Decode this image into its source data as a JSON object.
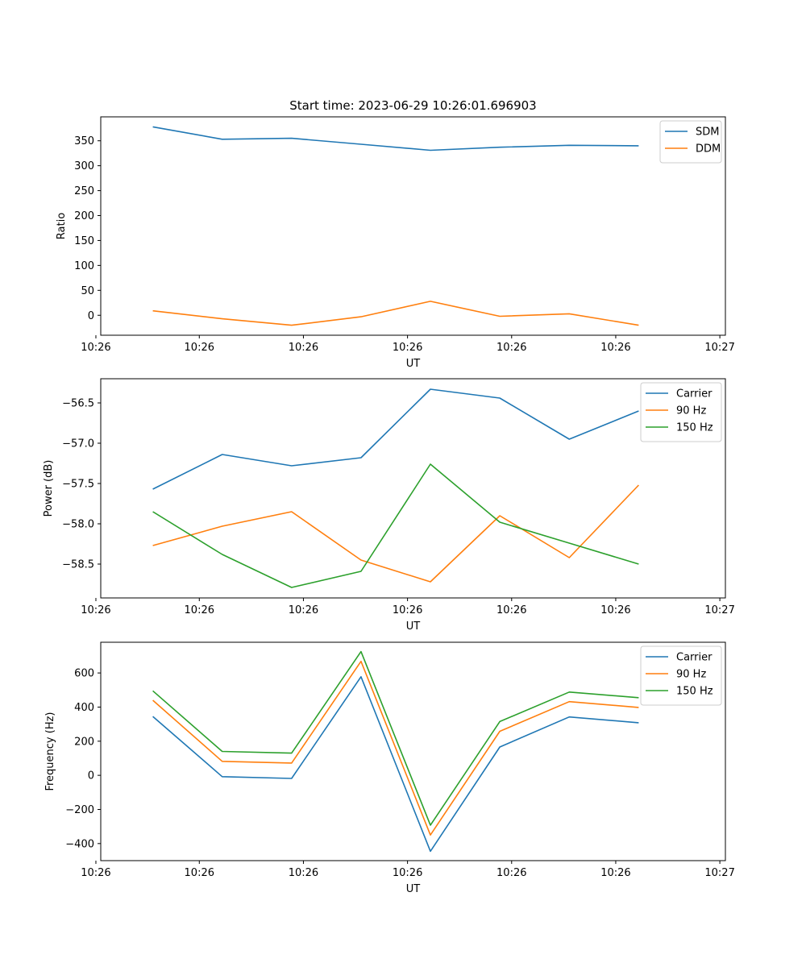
{
  "figure": {
    "title": "Start time: 2023-06-29 10:26:01.696903"
  },
  "chart_data": [
    {
      "type": "line",
      "title": "Start time: 2023-06-29 10:26:01.696903",
      "xlabel": "UT",
      "ylabel": "Ratio",
      "x": [
        1,
        2,
        3,
        4,
        5,
        6,
        7,
        8
      ],
      "x_range": [
        0.25,
        9.25
      ],
      "x_ticks": [
        0.18,
        1.67,
        3.17,
        4.67,
        6.17,
        7.67,
        9.17
      ],
      "x_tick_labels": [
        "10:26",
        "10:26",
        "10:26",
        "10:26",
        "10:26",
        "10:26",
        "10:27"
      ],
      "ylim": [
        -40,
        398
      ],
      "y_ticks": [
        0,
        50,
        100,
        150,
        200,
        250,
        300,
        350
      ],
      "y_tick_labels": [
        "0",
        "50",
        "100",
        "150",
        "200",
        "250",
        "300",
        "350"
      ],
      "grid": false,
      "legend_position": "top-right",
      "series": [
        {
          "name": "SDM",
          "color": "#1f77b4",
          "values": [
            378,
            353,
            355,
            343,
            331,
            337,
            341,
            340
          ]
        },
        {
          "name": "DDM",
          "color": "#ff7f0e",
          "values": [
            9,
            -7,
            -20,
            -3,
            28,
            -2,
            3,
            -20
          ]
        }
      ]
    },
    {
      "type": "line",
      "xlabel": "UT",
      "ylabel": "Power (dB)",
      "x": [
        1,
        2,
        3,
        4,
        5,
        6,
        7,
        8
      ],
      "x_range": [
        0.25,
        9.25
      ],
      "x_ticks": [
        0.18,
        1.67,
        3.17,
        4.67,
        6.17,
        7.67,
        9.17
      ],
      "x_tick_labels": [
        "10:26",
        "10:26",
        "10:26",
        "10:26",
        "10:26",
        "10:26",
        "10:27"
      ],
      "ylim": [
        -58.92,
        -56.2
      ],
      "y_ticks": [
        -58.5,
        -58.0,
        -57.5,
        -57.0,
        -56.5
      ],
      "y_tick_labels": [
        "−58.5",
        "−58.0",
        "−57.5",
        "−57.0",
        "−56.5"
      ],
      "grid": false,
      "legend_position": "top-right",
      "series": [
        {
          "name": "Carrier",
          "color": "#1f77b4",
          "values": [
            -57.57,
            -57.14,
            -57.28,
            -57.18,
            -56.33,
            -56.44,
            -56.95,
            -56.6
          ]
        },
        {
          "name": "90 Hz",
          "color": "#ff7f0e",
          "values": [
            -58.27,
            -58.03,
            -57.85,
            -58.45,
            -58.72,
            -57.9,
            -58.42,
            -57.52
          ]
        },
        {
          "name": "150 Hz",
          "color": "#2ca02c",
          "values": [
            -57.85,
            -58.38,
            -58.79,
            -58.59,
            -57.26,
            -57.98,
            -58.24,
            -58.5
          ]
        }
      ]
    },
    {
      "type": "line",
      "xlabel": "UT",
      "ylabel": "Frequency (Hz)",
      "x": [
        1,
        2,
        3,
        4,
        5,
        6,
        7,
        8
      ],
      "x_range": [
        0.25,
        9.25
      ],
      "x_ticks": [
        0.18,
        1.67,
        3.17,
        4.67,
        6.17,
        7.67,
        9.17
      ],
      "x_tick_labels": [
        "10:26",
        "10:26",
        "10:26",
        "10:26",
        "10:26",
        "10:26",
        "10:27"
      ],
      "ylim": [
        -500,
        780
      ],
      "y_ticks": [
        -400,
        -200,
        0,
        200,
        400,
        600
      ],
      "y_tick_labels": [
        "−400",
        "−200",
        "0",
        "200",
        "400",
        "600"
      ],
      "grid": false,
      "legend_position": "top-right",
      "series": [
        {
          "name": "Carrier",
          "color": "#1f77b4",
          "values": [
            345,
            -8,
            -18,
            578,
            -445,
            166,
            342,
            308
          ]
        },
        {
          "name": "90 Hz",
          "color": "#ff7f0e",
          "values": [
            440,
            82,
            72,
            668,
            -350,
            258,
            432,
            398
          ]
        },
        {
          "name": "150 Hz",
          "color": "#2ca02c",
          "values": [
            495,
            140,
            130,
            725,
            -292,
            315,
            488,
            455
          ]
        }
      ]
    }
  ]
}
